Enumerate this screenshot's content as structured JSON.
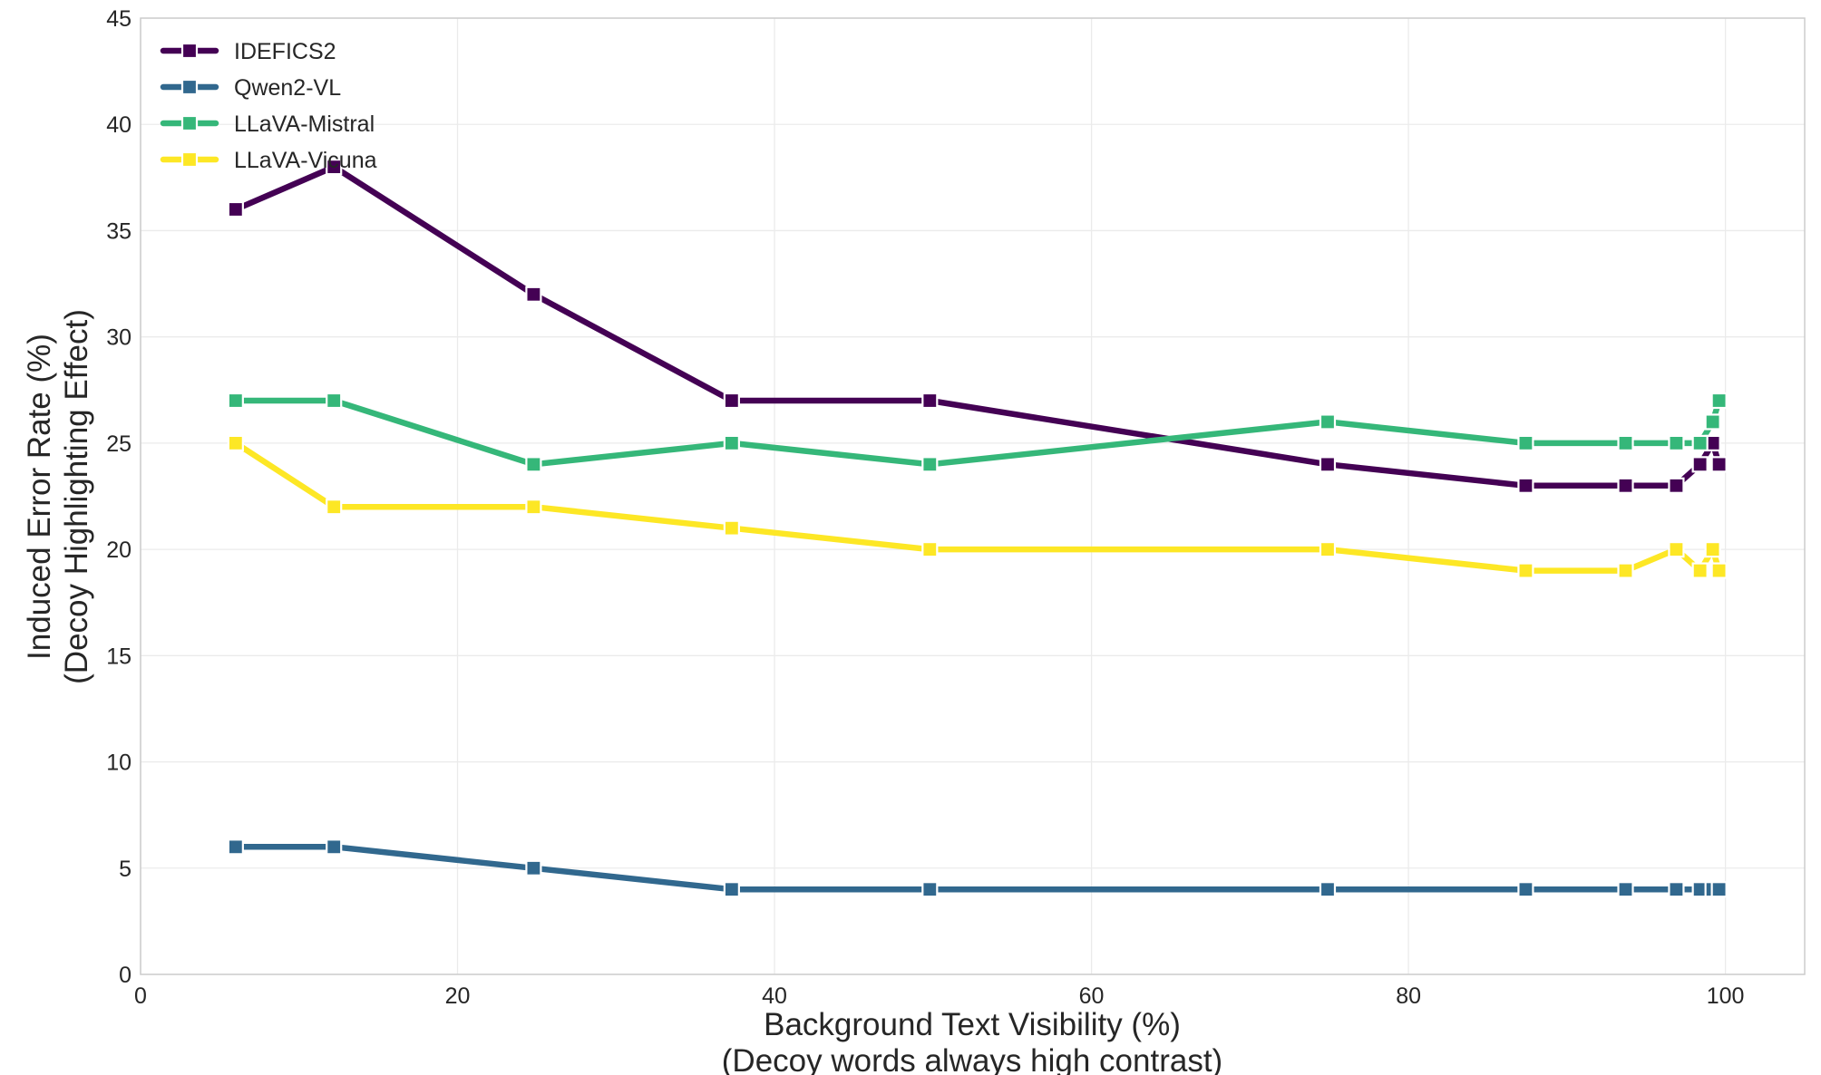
{
  "chart_data": {
    "type": "line",
    "xlabel": "Background Text Visibility (%)",
    "xlabel_line2": "(Decoy words always high contrast)",
    "ylabel": "Induced Error Rate (%)",
    "ylabel_line2": "(Decoy Highlighting Effect)",
    "xlim": [
      0,
      105
    ],
    "ylim": [
      0,
      45
    ],
    "xticks": [
      0,
      20,
      40,
      60,
      80,
      100
    ],
    "yticks": [
      0,
      5,
      10,
      15,
      20,
      25,
      30,
      35,
      40,
      45
    ],
    "grid": true,
    "legend_position": "top-left",
    "x": [
      6.0,
      12.2,
      24.8,
      37.3,
      49.8,
      74.9,
      87.4,
      93.7,
      96.9,
      98.4,
      99.2,
      99.6
    ],
    "series": [
      {
        "name": "IDEFICS2",
        "color": "#440154",
        "values": [
          36,
          38,
          32,
          27,
          27,
          24,
          23,
          23,
          23,
          24,
          25,
          24
        ]
      },
      {
        "name": "Qwen2-VL",
        "color": "#31688e",
        "values": [
          6,
          6,
          5,
          4,
          4,
          4,
          4,
          4,
          4,
          4,
          4,
          4
        ]
      },
      {
        "name": "LLaVA-Mistral",
        "color": "#35b779",
        "values": [
          27,
          27,
          24,
          25,
          24,
          26,
          25,
          25,
          25,
          25,
          26,
          27
        ]
      },
      {
        "name": "LLaVA-Vicuna",
        "color": "#fde725",
        "values": [
          25,
          22,
          22,
          21,
          20,
          20,
          19,
          19,
          20,
          19,
          20,
          19
        ]
      }
    ]
  }
}
